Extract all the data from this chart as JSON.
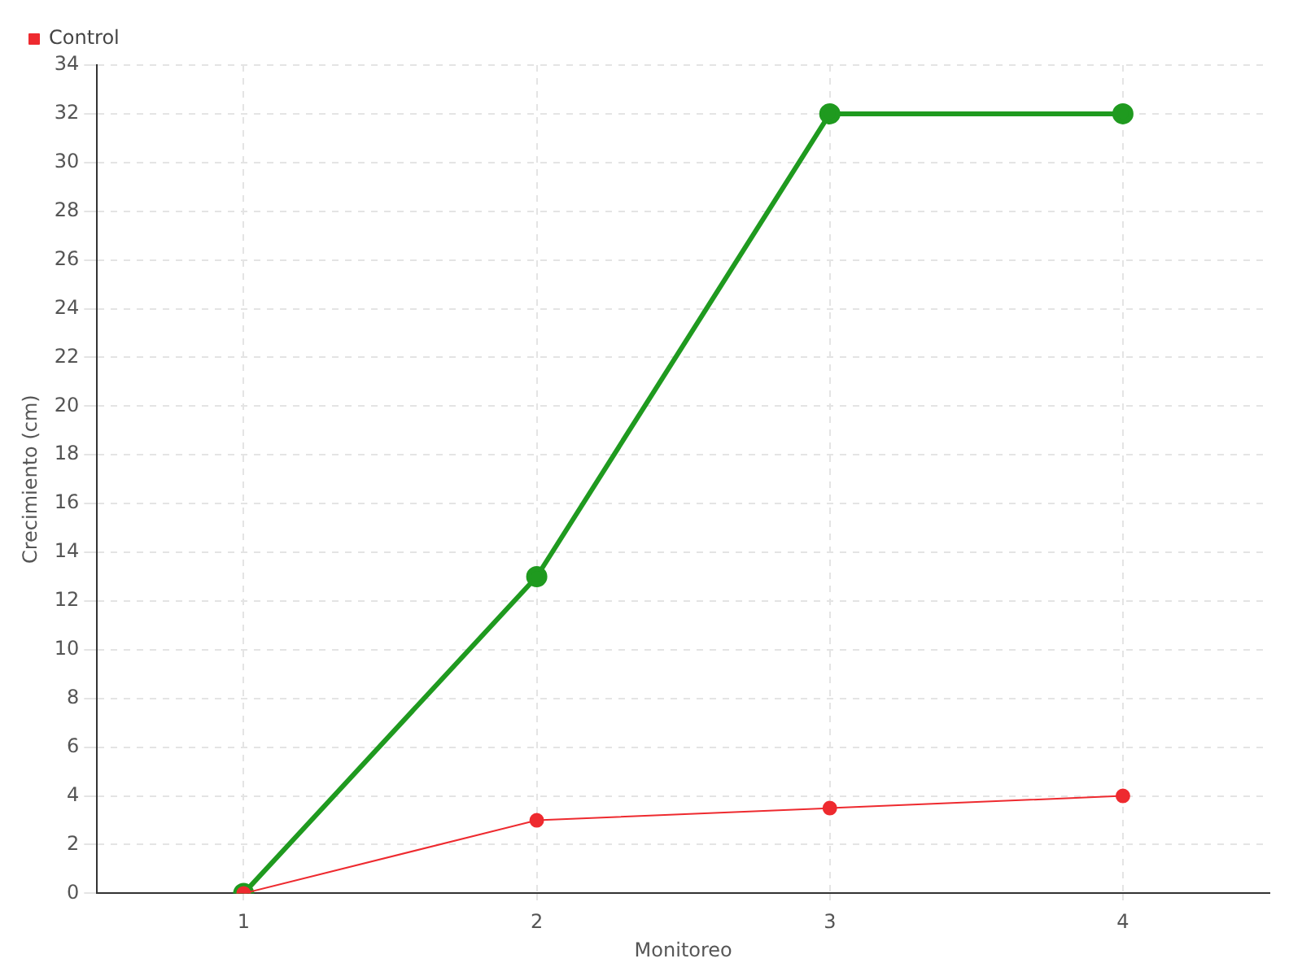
{
  "chart_data": {
    "type": "line",
    "xlabel": "Monitoreo",
    "ylabel": "Crecimiento (cm)",
    "categories": [
      "1",
      "2",
      "3",
      "4"
    ],
    "series": [
      {
        "color": "#1f9a1f",
        "values": [
          0,
          13,
          32,
          32
        ]
      },
      {
        "name": "Control",
        "color": "#ee2a2f",
        "values": [
          0,
          3,
          3.5,
          4
        ]
      }
    ],
    "ylim": [
      0,
      34
    ],
    "yticks": [
      0,
      2,
      4,
      6,
      8,
      10,
      12,
      14,
      16,
      18,
      20,
      22,
      24,
      26,
      28,
      30,
      32,
      34
    ],
    "grid": true,
    "legend": "top left",
    "marker": "circle",
    "line_style": "solid"
  }
}
